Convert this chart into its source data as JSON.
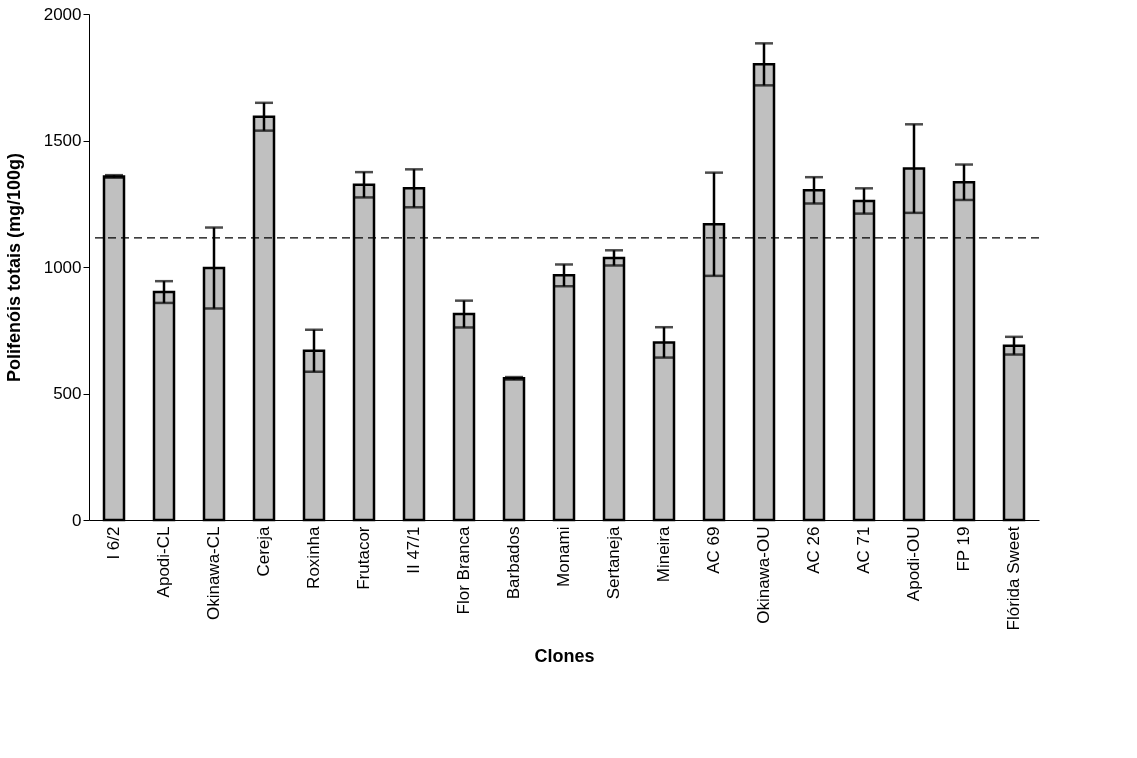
{
  "chart_data": {
    "type": "bar",
    "xlabel": "Clones",
    "ylabel": "Polifenóis totais (mg/100g)",
    "categories": [
      "I 6/2",
      "Apodi-CL",
      "Okinawa-CL",
      "Cereja",
      "Roxinha",
      "Frutacor",
      "II 47/1",
      "Flor Branca",
      "Barbados",
      "Monami",
      "Sertaneja",
      "Mineira",
      "AC 69",
      "Okinawa-OU",
      "AC 26",
      "AC 71",
      "Apodi-OU",
      "FP 19",
      "Flórida Sweet"
    ],
    "values": [
      1358,
      901,
      996,
      1594,
      669,
      1325,
      1311,
      814,
      560,
      967,
      1036,
      702,
      1169,
      1801,
      1303,
      1261,
      1389,
      1335,
      689
    ],
    "errors": [
      5,
      43,
      160,
      55,
      83,
      50,
      75,
      53,
      5,
      43,
      30,
      60,
      204,
      83,
      52,
      50,
      175,
      70,
      35
    ],
    "color": "#c0c0c0",
    "ylim": [
      0,
      2000
    ],
    "yticks": [
      0,
      500,
      1000,
      1500,
      2000
    ],
    "ref_lines": [
      {
        "axis": "y",
        "value": 1115,
        "line_style": "dashed",
        "color": "#000000"
      }
    ],
    "grid": false
  }
}
